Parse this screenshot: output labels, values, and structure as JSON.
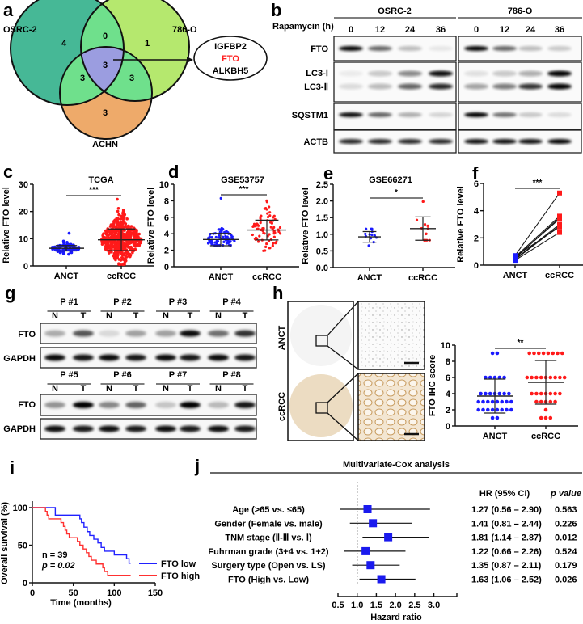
{
  "panel_labels": {
    "a": "a",
    "b": "b",
    "c": "c",
    "d": "d",
    "e": "e",
    "f": "f",
    "g": "g",
    "h": "h",
    "i": "i",
    "j": "j"
  },
  "venn": {
    "sets": [
      "OSRC-2",
      "786-O",
      "ACHN"
    ],
    "counts": {
      "osrc_only": "4",
      "osrc_786": "0",
      "r786_only": "1",
      "all": "3",
      "osrc_achn": "3",
      "r786_achn": "3",
      "achn_only": "3"
    },
    "callout": [
      "IGFBP2",
      "FTO",
      "ALKBH5"
    ],
    "callout_highlight_color": "#ff2020",
    "colors": {
      "osrc": "#46b896",
      "r786": "#b5e86e",
      "achn": "#eeaa6a",
      "pair": "#6fe08c",
      "all": "#9b9de0"
    }
  },
  "blot_b": {
    "treatment": "Rapamycin (h)",
    "cell_lines": [
      "OSRC-2",
      "786-O"
    ],
    "times": [
      "0",
      "12",
      "24",
      "36"
    ],
    "proteins": [
      "FTO",
      "LC3-Ⅰ",
      "LC3-Ⅱ",
      "SQSTM1",
      "ACTB"
    ]
  },
  "chart_data": [
    {
      "type": "scatter",
      "title": "TCGA",
      "ylabel": "Relative FTO level",
      "xlabel": "",
      "ylim": [
        0,
        30
      ],
      "yticks": [
        "0",
        "10",
        "20",
        "30"
      ],
      "categories": [
        "ANCT",
        "ccRCC"
      ],
      "significance": "***",
      "colors": [
        "#1a1aff",
        "#ff1a1a"
      ],
      "groups": [
        {
          "mean": 6.5,
          "sd": 1.0,
          "min": 4.3,
          "max": 12,
          "n": 72
        },
        {
          "mean": 9.6,
          "sd": 4.0,
          "min": 0.6,
          "max": 24.5,
          "n": 530
        }
      ]
    },
    {
      "type": "scatter",
      "title": "GSE53757",
      "ylabel": "Relative FTO level",
      "xlabel": "",
      "ylim": [
        0,
        10
      ],
      "yticks": [
        "0",
        "2",
        "4",
        "6",
        "8",
        "10"
      ],
      "categories": [
        "ANCT",
        "ccRCC"
      ],
      "significance": "***",
      "colors": [
        "#1a1aff",
        "#ff1a1a"
      ],
      "groups": [
        {
          "mean": 3.3,
          "sd": 0.75,
          "min": 2.6,
          "max": 8.3,
          "n": 72
        },
        {
          "mean": 4.45,
          "sd": 1.2,
          "min": 1.2,
          "max": 8.0,
          "n": 72
        }
      ]
    },
    {
      "type": "scatter",
      "title": "GSE66271",
      "ylabel": "Relative FTO level",
      "xlabel": "",
      "ylim": [
        0,
        2.5
      ],
      "yticks": [
        "0.0",
        "0.5",
        "1.0",
        "1.5",
        "2.0",
        "2.5"
      ],
      "categories": [
        "ANCT",
        "ccRCC"
      ],
      "significance": "*",
      "colors": [
        "#1a1aff",
        "#ff1a1a"
      ],
      "groups": [
        {
          "mean": 0.92,
          "sd": 0.16,
          "min": 0.62,
          "max": 1.16,
          "n": 13
        },
        {
          "mean": 1.17,
          "sd": 0.35,
          "min": 0.82,
          "max": 1.98,
          "n": 14
        }
      ]
    },
    {
      "type": "line",
      "title": "",
      "ylabel": "Relative FTO level",
      "xlabel": "",
      "ylim": [
        0,
        6
      ],
      "yticks": [
        "0",
        "2",
        "4",
        "6"
      ],
      "categories": [
        "ANCT",
        "ccRCC"
      ],
      "significance": "***",
      "colors": [
        "#1a1aff",
        "#ff1a1a"
      ],
      "pairs": [
        [
          0.7,
          5.3
        ],
        [
          0.6,
          3.6
        ],
        [
          0.5,
          3.5
        ],
        [
          0.55,
          3.4
        ],
        [
          0.45,
          3.0
        ],
        [
          0.4,
          2.9
        ],
        [
          0.65,
          2.8
        ],
        [
          0.35,
          2.4
        ]
      ]
    },
    {
      "type": "scatter",
      "title": "",
      "ylabel": "FTO IHC score",
      "xlabel": "",
      "ylim": [
        0,
        10
      ],
      "yticks": [
        "0",
        "2",
        "4",
        "6",
        "8",
        "10"
      ],
      "categories": [
        "ANCT",
        "ccRCC"
      ],
      "significance": "**",
      "colors": [
        "#1a1aff",
        "#ff1a1a"
      ],
      "value_counts": [
        {
          "9": 2,
          "6": 5,
          "4": 7,
          "3": 8,
          "2": 8,
          "1": 2
        },
        {
          "9": 8,
          "6": 9,
          "4": 7,
          "3": 5,
          "2": 1,
          "1": 3
        }
      ],
      "mean_sd": [
        [
          3.7,
          2.1
        ],
        [
          5.4,
          2.7
        ]
      ]
    },
    {
      "type": "line",
      "title": "",
      "ylabel": "Overall survival (%)",
      "xlabel": "Time (months)",
      "xlim": [
        0,
        150
      ],
      "ylim": [
        0,
        100
      ],
      "xticks": [
        "0",
        "50",
        "100",
        "150"
      ],
      "yticks": [
        "0",
        "50",
        "100"
      ],
      "annotations": [
        "n = 39",
        "p = 0.02"
      ],
      "legend_position": "bottom-right",
      "series": [
        {
          "name": "FTO low",
          "color": "#2020ff",
          "steps": [
            [
              0,
              100
            ],
            [
              28,
              90
            ],
            [
              58,
              85
            ],
            [
              60,
              80
            ],
            [
              63,
              74
            ],
            [
              67,
              68
            ],
            [
              70,
              63
            ],
            [
              75,
              58
            ],
            [
              80,
              53
            ],
            [
              84,
              47
            ],
            [
              88,
              42
            ],
            [
              100,
              37
            ],
            [
              115,
              32
            ],
            [
              118,
              26
            ],
            [
              120,
              26
            ]
          ]
        },
        {
          "name": "FTO high",
          "color": "#ff3030",
          "steps": [
            [
              0,
              100
            ],
            [
              16,
              95
            ],
            [
              18,
              90
            ],
            [
              20,
              85
            ],
            [
              35,
              80
            ],
            [
              38,
              75
            ],
            [
              40,
              70
            ],
            [
              42,
              65
            ],
            [
              45,
              60
            ],
            [
              55,
              55
            ],
            [
              58,
              50
            ],
            [
              62,
              45
            ],
            [
              66,
              40
            ],
            [
              69,
              35
            ],
            [
              72,
              30
            ],
            [
              78,
              25
            ],
            [
              86,
              20
            ],
            [
              88,
              15
            ],
            [
              92,
              10
            ],
            [
              120,
              10
            ]
          ]
        }
      ]
    },
    {
      "type": "forest",
      "title": "Multivariate-Cox analysis",
      "xlabel": "Hazard ratio",
      "xlim": [
        0.5,
        3.6
      ],
      "xticks": [
        "0.5",
        "1.0",
        "1.5",
        "2.0",
        "2.5",
        "3.0"
      ],
      "reference": 1.0,
      "col_headers": [
        "HR  (95% CI)",
        "p value"
      ],
      "rows": [
        {
          "label": "Age (>65 vs. ≤65)",
          "hr": 1.27,
          "lo": 0.56,
          "hi": 2.9,
          "ci_text": "1.27 (0.56 – 2.90)",
          "p": "0.563"
        },
        {
          "label": "Gender (Female vs. male)",
          "hr": 1.41,
          "lo": 0.81,
          "hi": 2.44,
          "ci_text": "1.41 (0.81 – 2.44)",
          "p": "0.226"
        },
        {
          "label": "TNM stage (Ⅱ-Ⅲ vs. Ⅰ)",
          "hr": 1.81,
          "lo": 1.14,
          "hi": 2.87,
          "ci_text": "1.81 (1.14 – 2.87)",
          "p": "0.012"
        },
        {
          "label": "Fuhrman grade (3+4 vs. 1+2)",
          "hr": 1.22,
          "lo": 0.66,
          "hi": 2.26,
          "ci_text": "1.22 (0.66 – 2.26)",
          "p": "0.524"
        },
        {
          "label": "Surgery type (Open vs. LS)",
          "hr": 1.35,
          "lo": 0.87,
          "hi": 2.11,
          "ci_text": "1.35 (0.87 – 2.11)",
          "p": "0.179"
        },
        {
          "label": "FTO (High vs. Low)",
          "hr": 1.63,
          "lo": 1.06,
          "hi": 2.52,
          "ci_text": "1.63 (1.06 – 2.52)",
          "p": "0.026"
        }
      ],
      "marker_color": "#1a1aee"
    }
  ],
  "blot_g": {
    "patients": [
      "P #1",
      "P #2",
      "P #3",
      "P #4",
      "P #5",
      "P #6",
      "P #7",
      "P #8"
    ],
    "lanes": [
      "N",
      "T"
    ],
    "proteins": [
      "FTO",
      "GAPDH"
    ]
  },
  "ihc": {
    "rows": [
      "ANCT",
      "ccRCC"
    ]
  }
}
